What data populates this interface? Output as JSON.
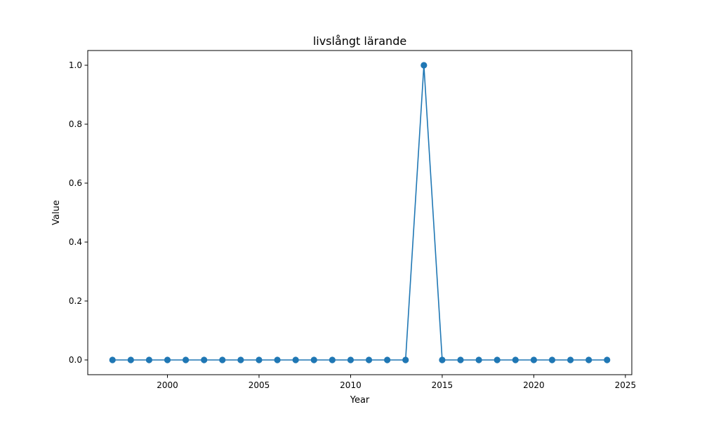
{
  "chart_data": {
    "type": "line",
    "title": "livslångt lärande",
    "xlabel": "Year",
    "ylabel": "Value",
    "x": [
      1997,
      1998,
      1999,
      2000,
      2001,
      2002,
      2003,
      2004,
      2005,
      2006,
      2007,
      2008,
      2009,
      2010,
      2011,
      2012,
      2013,
      2014,
      2015,
      2016,
      2017,
      2018,
      2019,
      2020,
      2021,
      2022,
      2023,
      2024
    ],
    "series": [
      {
        "values": [
          0,
          0,
          0,
          0,
          0,
          0,
          0,
          0,
          0,
          0,
          0,
          0,
          0,
          0,
          0,
          0,
          0,
          1,
          0,
          0,
          0,
          0,
          0,
          0,
          0,
          0,
          0,
          0
        ],
        "color": "#1f77b4",
        "marker": "circle"
      }
    ],
    "xlim": [
      1995.65,
      2025.35
    ],
    "ylim": [
      -0.05,
      1.05
    ],
    "xticks": [
      2000,
      2005,
      2010,
      2015,
      2020,
      2025
    ],
    "yticks": [
      0.0,
      0.2,
      0.4,
      0.6,
      0.8,
      1.0
    ],
    "xtick_labels": [
      "2000",
      "2005",
      "2010",
      "2015",
      "2020",
      "2025"
    ],
    "ytick_labels": [
      "0.0",
      "0.2",
      "0.4",
      "0.6",
      "0.8",
      "1.0"
    ],
    "grid": false,
    "legend": "none"
  }
}
